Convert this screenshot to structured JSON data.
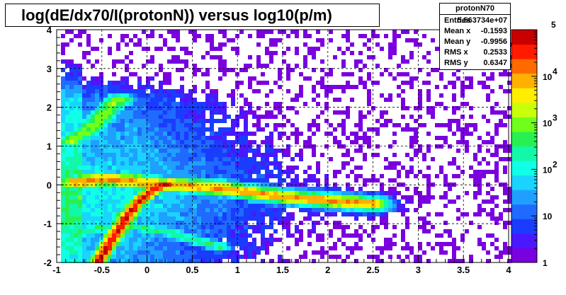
{
  "chart_data": {
    "type": "heatmap",
    "title": "log(dE/dx70/I(protonN)) versus log10(p/m)",
    "xlim": [
      -1,
      4
    ],
    "ylim": [
      -2,
      4
    ],
    "x_ticks": [
      "-1",
      "-0.5",
      "0",
      "0.5",
      "1",
      "1.5",
      "2",
      "2.5",
      "3",
      "3.5",
      "4"
    ],
    "y_ticks": [
      "-2",
      "-1",
      "0",
      "1",
      "2",
      "3",
      "4"
    ],
    "grid": true,
    "z_scale": "log",
    "z_ticks": [
      {
        "label": "1",
        "exp": ""
      },
      {
        "label": "10",
        "exp": ""
      },
      {
        "label": "10",
        "exp": "2"
      },
      {
        "label": "10",
        "exp": "3"
      },
      {
        "label": "10",
        "exp": "4"
      },
      {
        "label": "",
        "exp": "5"
      }
    ],
    "bands": [
      {
        "name": "proton band",
        "points": [
          [
            -0.55,
            -2.0
          ],
          [
            -0.4,
            -1.45
          ],
          [
            -0.25,
            -0.9
          ],
          [
            -0.1,
            -0.45
          ],
          [
            0.05,
            -0.15
          ],
          [
            0.25,
            0.05
          ]
        ],
        "peak_log10_counts": 4.7
      },
      {
        "name": "minimum ionizing band",
        "points": [
          [
            -0.8,
            0.05
          ],
          [
            -0.5,
            0.15
          ],
          [
            -0.2,
            0.1
          ],
          [
            0.2,
            0.0
          ],
          [
            0.7,
            -0.05
          ],
          [
            1.5,
            -0.3
          ],
          [
            2.5,
            -0.5
          ]
        ],
        "peak_log10_counts": 4.0
      },
      {
        "name": "upper band",
        "points": [
          [
            -0.85,
            1.1
          ],
          [
            -0.6,
            1.5
          ],
          [
            -0.45,
            1.9
          ],
          [
            -0.3,
            2.2
          ]
        ],
        "peak_log10_counts": 3.0
      },
      {
        "name": "lower band",
        "points": [
          [
            -0.8,
            -1.3
          ],
          [
            -0.6,
            -1.15
          ],
          [
            -0.3,
            -1.05
          ],
          [
            0.2,
            -1.2
          ],
          [
            0.8,
            -1.6
          ]
        ],
        "peak_log10_counts": 2.5
      }
    ]
  },
  "stats_box": {
    "name": "protonN70",
    "entries_label": "Entries",
    "entries": "5.563734e+07",
    "meanx_label": "Mean x",
    "meanx": "-0.1593",
    "meany_label": "Mean y",
    "meany": "-0.9956",
    "rmsx_label": "RMS x",
    "rmsx": "0.2533",
    "rmsy_label": "RMS y",
    "rmsy": "0.6347"
  },
  "palette": [
    "#7a00e0",
    "#4a18ff",
    "#1a3cff",
    "#1f6aff",
    "#1fa0ff",
    "#19d4ff",
    "#10ffe6",
    "#12f8a8",
    "#28f050",
    "#70ff1a",
    "#c8ff0a",
    "#ffee00",
    "#ffb000",
    "#ff6a00",
    "#ff1a00",
    "#c80000"
  ]
}
